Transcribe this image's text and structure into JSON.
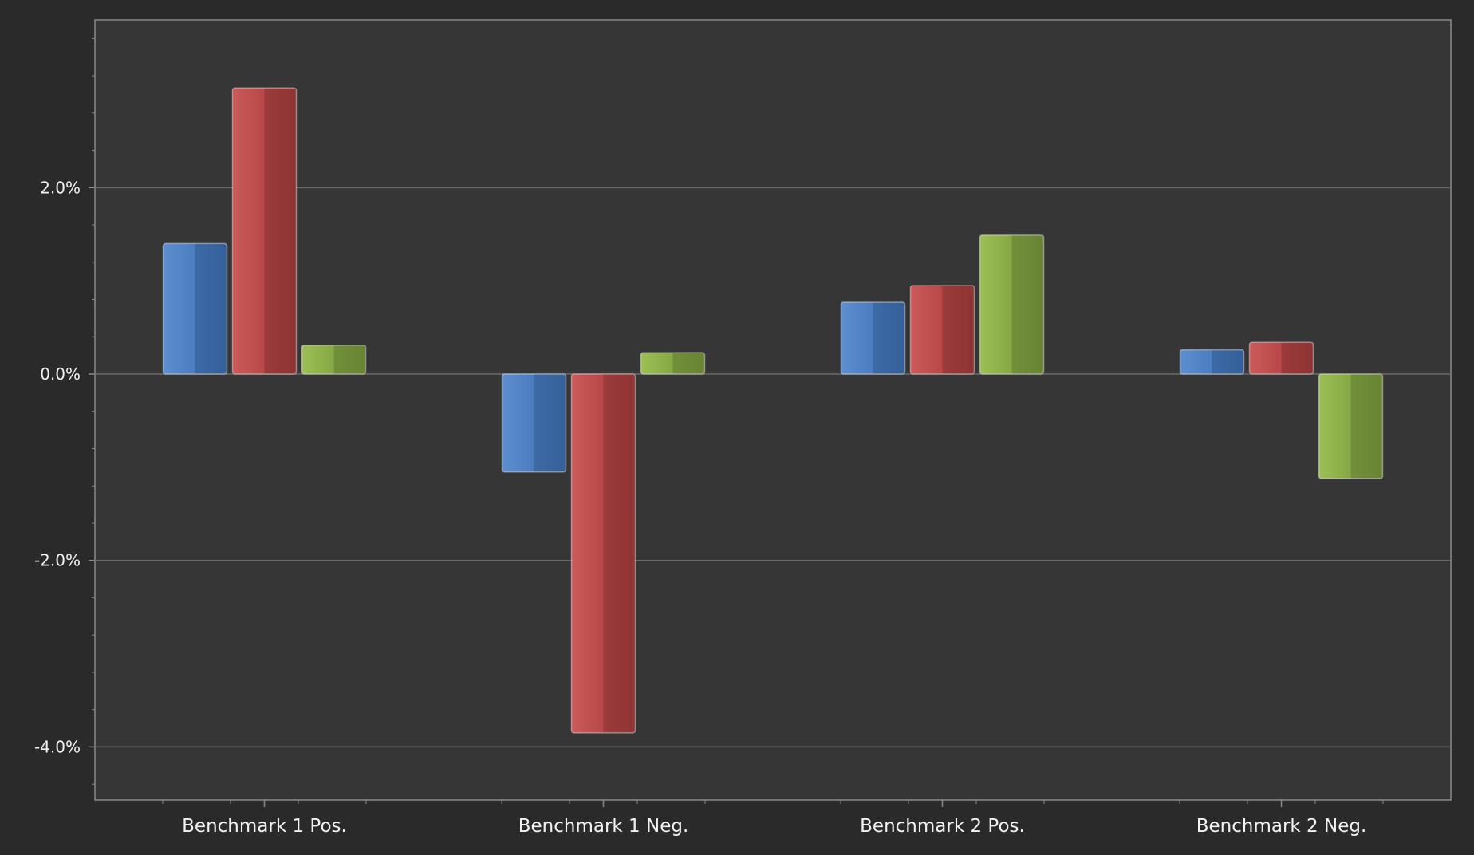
{
  "chart_data": {
    "type": "bar",
    "categories": [
      "Benchmark 1 Pos.",
      "Benchmark 1 Neg.",
      "Benchmark 2 Pos.",
      "Benchmark 2 Neg."
    ],
    "series": [
      {
        "values": [
          1.4,
          -1.05,
          0.77,
          0.26
        ],
        "color": "#4a7cbf"
      },
      {
        "values": [
          3.07,
          -3.85,
          0.95,
          0.34
        ],
        "color": "#b84848"
      },
      {
        "values": [
          0.31,
          0.23,
          1.49,
          -1.12
        ],
        "color": "#86a845"
      }
    ],
    "y_ticks": [
      {
        "value": 2.0,
        "label": "2.0%"
      },
      {
        "value": 0.0,
        "label": "0.0%"
      },
      {
        "value": -2.0,
        "label": "-2.0%"
      },
      {
        "value": -4.0,
        "label": "-4.0%"
      }
    ],
    "ylim": [
      -4.57,
      3.8
    ],
    "title": "",
    "xlabel": "",
    "ylabel": "",
    "grid": true,
    "legend": "none"
  },
  "colors": {
    "background": "#2a2a2a",
    "plot_background": "#363636",
    "gridline": "#6c6c6c",
    "axis": "#8a8a8a",
    "text": "#f2f2f2"
  }
}
